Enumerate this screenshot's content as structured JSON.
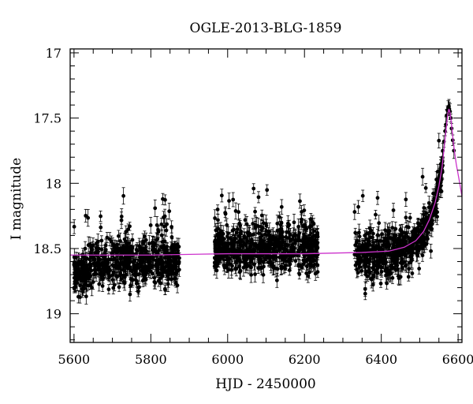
{
  "chart_data": {
    "type": "scatter",
    "title": "OGLE-2013-BLG-1859",
    "xlabel": "HJD - 2450000",
    "ylabel": "I magnitude",
    "xlim": [
      5590,
      6610
    ],
    "ylim": [
      19.22,
      16.97
    ],
    "y_inverted": true,
    "grid": false,
    "legend": "none",
    "x_ticks": [
      5600,
      5800,
      6000,
      6200,
      6400,
      6600
    ],
    "x_tick_labels": [
      "5600",
      "5800",
      "6000",
      "6200",
      "6400",
      "6600"
    ],
    "y_ticks": [
      17,
      17.5,
      18,
      18.5,
      19
    ],
    "y_tick_labels": [
      "17",
      "17.5",
      "18",
      "18.5",
      "19"
    ],
    "point_color": "#000000",
    "model_color": "#cc33cc",
    "season_clusters": [
      {
        "x_start": 5600,
        "x_end": 5875,
        "baseline_mag": 18.6,
        "scatter_mag": 0.12,
        "n_points": 620
      },
      {
        "x_start": 5965,
        "x_end": 6235,
        "baseline_mag": 18.5,
        "scatter_mag": 0.12,
        "n_points": 640
      },
      {
        "x_start": 6330,
        "x_end": 6560,
        "baseline_mag": 18.55,
        "scatter_mag": 0.12,
        "n_points": 540
      }
    ],
    "peak_points": [
      {
        "x": 6560,
        "y": 17.75
      },
      {
        "x": 6563,
        "y": 17.68
      },
      {
        "x": 6566,
        "y": 17.6
      },
      {
        "x": 6568,
        "y": 17.55
      },
      {
        "x": 6570,
        "y": 17.48
      },
      {
        "x": 6572,
        "y": 17.44
      },
      {
        "x": 6574,
        "y": 17.42
      },
      {
        "x": 6576,
        "y": 17.41
      },
      {
        "x": 6577,
        "y": 17.43
      },
      {
        "x": 6579,
        "y": 17.45
      },
      {
        "x": 6581,
        "y": 17.5
      },
      {
        "x": 6583,
        "y": 17.58
      },
      {
        "x": 6586,
        "y": 17.67
      },
      {
        "x": 6589,
        "y": 17.75
      }
    ],
    "model_curve": [
      {
        "x": 5590,
        "y": 18.55
      },
      {
        "x": 5800,
        "y": 18.55
      },
      {
        "x": 6000,
        "y": 18.54
      },
      {
        "x": 6200,
        "y": 18.54
      },
      {
        "x": 6350,
        "y": 18.53
      },
      {
        "x": 6420,
        "y": 18.52
      },
      {
        "x": 6460,
        "y": 18.49
      },
      {
        "x": 6490,
        "y": 18.44
      },
      {
        "x": 6510,
        "y": 18.37
      },
      {
        "x": 6525,
        "y": 18.28
      },
      {
        "x": 6540,
        "y": 18.15
      },
      {
        "x": 6550,
        "y": 18.02
      },
      {
        "x": 6558,
        "y": 17.88
      },
      {
        "x": 6564,
        "y": 17.72
      },
      {
        "x": 6569,
        "y": 17.58
      },
      {
        "x": 6573,
        "y": 17.47
      },
      {
        "x": 6576,
        "y": 17.43
      },
      {
        "x": 6579,
        "y": 17.46
      },
      {
        "x": 6583,
        "y": 17.55
      },
      {
        "x": 6588,
        "y": 17.7
      },
      {
        "x": 6595,
        "y": 17.85
      },
      {
        "x": 6603,
        "y": 17.98
      },
      {
        "x": 6610,
        "y": 18.1
      }
    ]
  }
}
